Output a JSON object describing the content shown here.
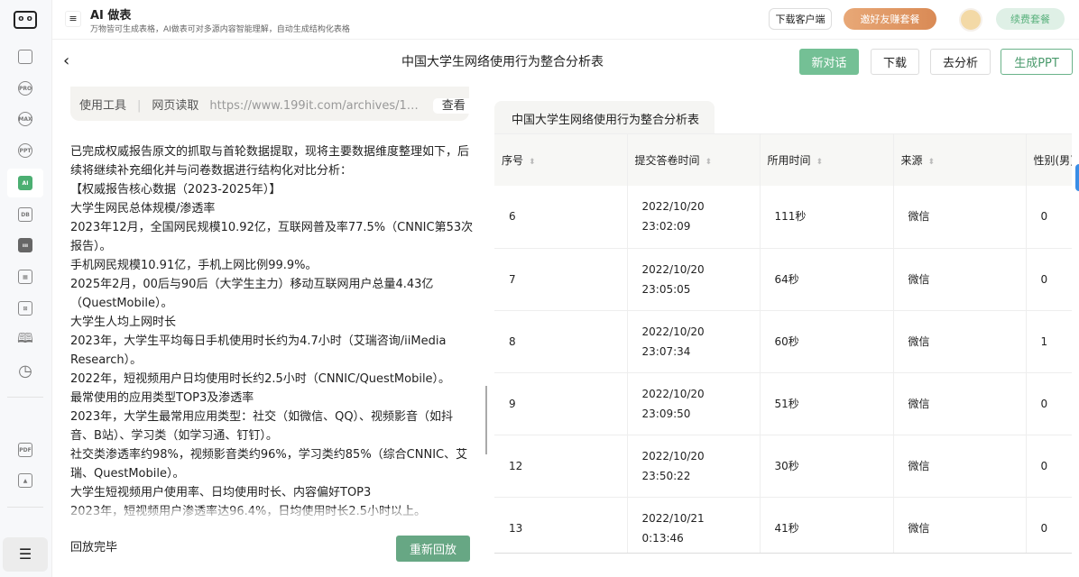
{
  "header": {
    "title": "AI 做表",
    "subtitle": "万物皆可生成表格，AI做表可对多源内容智能理解，自动生成结构化表格",
    "download_client": "下载客户端",
    "invite": "邀好友赚套餐",
    "renew": "续费套餐"
  },
  "toolbar": {
    "title": "中国大学生网络使用行为整合分析表",
    "new_chat": "新对话",
    "download": "下载",
    "analyze": "去分析",
    "gen_ppt": "生成PPT"
  },
  "sidebar": {
    "items": [
      "home",
      "PRO",
      "MAX",
      "PPT",
      "AI",
      "DB",
      "chart",
      "table",
      "layout",
      "book",
      "history",
      "PDF",
      "image"
    ],
    "accent": "#4caf72"
  },
  "chat": {
    "tool": {
      "label": "使用工具",
      "type": "网页读取",
      "url": "https://www.199it.com/archives/1…",
      "view": "查看"
    },
    "lines": [
      "已完成权威报告原文的抓取与首轮数据提取，现将主要数据维度整理如下，后续将继续补充细化并与问卷数据进行结构化对比分析：",
      "【权威报告核心数据（2023-2025年）】",
      "大学生网民总体规模/渗透率",
      "2023年12月，全国网民规模10.92亿，互联网普及率77.5%（CNNIC第53次报告）。",
      "手机网民规模10.91亿，手机上网比例99.9%。",
      "2025年2月，00后与90后（大学生主力）移动互联网用户总量4.43亿（QuestMobile）。",
      "大学生人均上网时长",
      "2023年，大学生平均每日手机使用时长约为4.7小时（艾瑞咨询/iiMedia Research）。",
      "2022年，短视频用户日均使用时长约2.5小时（CNNIC/QuestMobile）。",
      "最常使用的应用类型TOP3及渗透率",
      "2023年，大学生最常用应用类型：社交（如微信、QQ）、视频影音（如抖音、B站）、学习类（如学习通、钉钉）。",
      "社交类渗透率约98%，视频影音类约96%，学习类约85%（综合CNNIC、艾瑞、QuestMobile）。",
      "大学生短视频用户使用率、日均使用时长、内容偏好TOP3",
      "2023年，短视频用户渗透率达96.4%，日均使用时长2.5小时以上。"
    ],
    "status": "回放完毕",
    "replay": "重新回放"
  },
  "table": {
    "tab": "中国大学生网络使用行为整合分析表",
    "columns": [
      "序号",
      "提交答卷时间",
      "所用时间",
      "来源",
      "性别(男)"
    ],
    "rows": [
      [
        "6",
        "2022/10/20 23:02:09",
        "111秒",
        "微信",
        "0"
      ],
      [
        "7",
        "2022/10/20 23:05:05",
        "64秒",
        "微信",
        "0"
      ],
      [
        "8",
        "2022/10/20 23:07:34",
        "60秒",
        "微信",
        "1"
      ],
      [
        "9",
        "2022/10/20 23:09:50",
        "51秒",
        "微信",
        "0"
      ],
      [
        "12",
        "2022/10/20 23:50:22",
        "30秒",
        "微信",
        "0"
      ],
      [
        "13",
        "2022/10/21 0:13:46",
        "41秒",
        "微信",
        "0"
      ]
    ]
  }
}
